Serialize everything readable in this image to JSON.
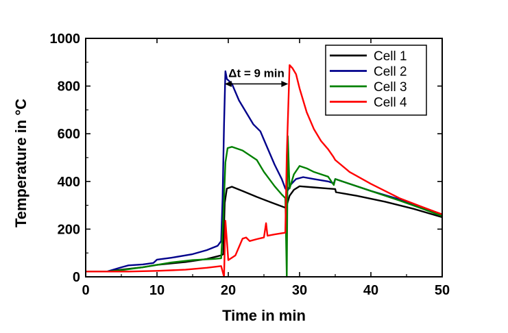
{
  "chart_data": {
    "type": "line",
    "xlabel": "Time in min",
    "ylabel": "Temperature in °C",
    "xlim": [
      0,
      50
    ],
    "ylim": [
      0,
      1000
    ],
    "xticks": [
      0,
      10,
      20,
      30,
      40,
      50
    ],
    "yticks": [
      0,
      200,
      400,
      600,
      800,
      1000
    ],
    "legend_position": "top-right",
    "annotation": {
      "text": "Δt = 9 min",
      "from_x": 19.5,
      "to_x": 28.4,
      "y": 855
    },
    "series": [
      {
        "name": "Cell 1",
        "color": "#000000",
        "points": [
          [
            0,
            22
          ],
          [
            3,
            22
          ],
          [
            5,
            30
          ],
          [
            8,
            40
          ],
          [
            10,
            50
          ],
          [
            14,
            62
          ],
          [
            17,
            75
          ],
          [
            19,
            90
          ],
          [
            19.3,
            95
          ],
          [
            19.5,
            310
          ],
          [
            19.8,
            370
          ],
          [
            20.5,
            378
          ],
          [
            22,
            360
          ],
          [
            24,
            335
          ],
          [
            26,
            312
          ],
          [
            28,
            290
          ],
          [
            28.2,
            300
          ],
          [
            28.6,
            340
          ],
          [
            29.2,
            365
          ],
          [
            30,
            380
          ],
          [
            32,
            375
          ],
          [
            34,
            370
          ],
          [
            35,
            368
          ],
          [
            35.1,
            355
          ],
          [
            38,
            340
          ],
          [
            42,
            315
          ],
          [
            46,
            285
          ],
          [
            50,
            250
          ]
        ]
      },
      {
        "name": "Cell 2",
        "color": "#00008b",
        "points": [
          [
            0,
            22
          ],
          [
            3,
            22
          ],
          [
            5,
            40
          ],
          [
            6,
            48
          ],
          [
            8,
            52
          ],
          [
            9.5,
            58
          ],
          [
            10,
            72
          ],
          [
            12,
            80
          ],
          [
            15,
            95
          ],
          [
            17,
            112
          ],
          [
            18.5,
            130
          ],
          [
            19,
            150
          ],
          [
            19.2,
            330
          ],
          [
            19.4,
            640
          ],
          [
            19.6,
            862
          ],
          [
            19.8,
            830
          ],
          [
            20.5,
            810
          ],
          [
            21.5,
            740
          ],
          [
            22.5,
            690
          ],
          [
            23.5,
            640
          ],
          [
            24.5,
            610
          ],
          [
            25.5,
            540
          ],
          [
            26.5,
            470
          ],
          [
            27.5,
            410
          ],
          [
            28,
            370
          ],
          [
            28.3,
            360
          ],
          [
            28.7,
            385
          ],
          [
            29.5,
            410
          ],
          [
            30.5,
            418
          ],
          [
            32,
            410
          ],
          [
            34,
            400
          ],
          [
            34.8,
            392
          ],
          [
            35,
            410
          ],
          [
            37,
            390
          ],
          [
            40,
            360
          ],
          [
            44,
            325
          ],
          [
            47,
            290
          ],
          [
            50,
            258
          ]
        ]
      },
      {
        "name": "Cell 3",
        "color": "#008000",
        "points": [
          [
            0,
            22
          ],
          [
            3,
            22
          ],
          [
            5,
            28
          ],
          [
            8,
            40
          ],
          [
            10,
            50
          ],
          [
            12,
            60
          ],
          [
            15,
            70
          ],
          [
            18,
            75
          ],
          [
            19,
            78
          ],
          [
            19.3,
            250
          ],
          [
            19.6,
            480
          ],
          [
            19.9,
            540
          ],
          [
            20.5,
            545
          ],
          [
            22,
            530
          ],
          [
            24,
            490
          ],
          [
            25,
            440
          ],
          [
            25.5,
            420
          ],
          [
            26.5,
            380
          ],
          [
            27.5,
            345
          ],
          [
            28,
            330
          ],
          [
            28.2,
            0
          ],
          [
            28.35,
            590
          ],
          [
            28.6,
            370
          ],
          [
            29.2,
            430
          ],
          [
            30,
            465
          ],
          [
            31,
            455
          ],
          [
            32,
            440
          ],
          [
            34,
            420
          ],
          [
            34.8,
            385
          ],
          [
            35,
            410
          ],
          [
            37,
            390
          ],
          [
            40,
            360
          ],
          [
            44,
            320
          ],
          [
            47,
            288
          ],
          [
            50,
            255
          ]
        ]
      },
      {
        "name": "Cell 4",
        "color": "#ff0000",
        "points": [
          [
            0,
            22
          ],
          [
            6,
            22
          ],
          [
            10,
            25
          ],
          [
            14,
            30
          ],
          [
            17,
            38
          ],
          [
            19,
            45
          ],
          [
            19.4,
            0
          ],
          [
            19.6,
            235
          ],
          [
            20,
            70
          ],
          [
            21,
            90
          ],
          [
            21.5,
            125
          ],
          [
            22,
            160
          ],
          [
            22.5,
            165
          ],
          [
            23,
            150
          ],
          [
            24,
            158
          ],
          [
            25,
            165
          ],
          [
            25.3,
            225
          ],
          [
            25.5,
            172
          ],
          [
            26.5,
            178
          ],
          [
            28,
            185
          ],
          [
            28.2,
            510
          ],
          [
            28.6,
            888
          ],
          [
            29,
            875
          ],
          [
            29.5,
            850
          ],
          [
            30,
            790
          ],
          [
            31,
            690
          ],
          [
            32,
            620
          ],
          [
            33,
            570
          ],
          [
            34,
            535
          ],
          [
            34.7,
            505
          ],
          [
            35,
            490
          ],
          [
            37,
            440
          ],
          [
            40,
            390
          ],
          [
            44,
            330
          ],
          [
            47,
            295
          ],
          [
            50,
            262
          ]
        ]
      }
    ]
  }
}
